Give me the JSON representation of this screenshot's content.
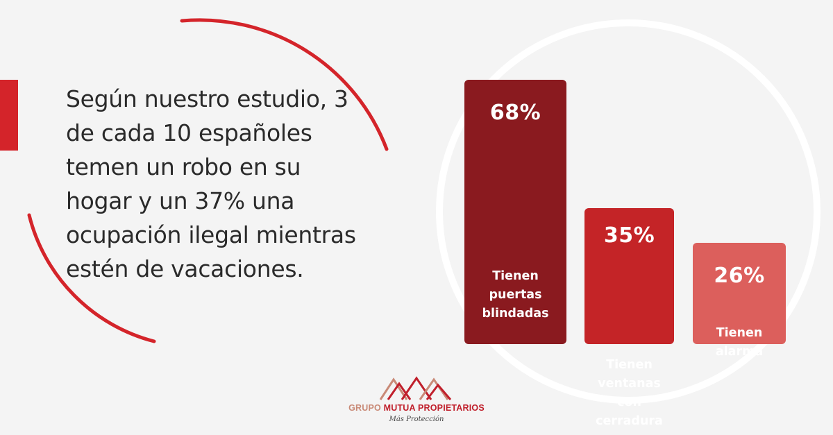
{
  "headline": "Según nuestro estudio, 3 de cada 10 españoles temen un robo en su hogar y un 37% una ocupación ilegal mientras estén de vacaciones.",
  "colors": {
    "background": "#f4f4f4",
    "accent_red": "#d4242a",
    "bar_dark": "#8a1a1f",
    "bar_mid": "#c42427",
    "bar_light": "#dc5f5c"
  },
  "chart_data": {
    "type": "bar",
    "categories": [
      "Tienen puertas blindadas",
      "Tienen ventanas con cerradura",
      "Tienen alarma"
    ],
    "values": [
      68,
      35,
      26
    ],
    "value_labels": [
      "68%",
      "35%",
      "26%"
    ],
    "label_lines": [
      [
        "Tienen",
        "puertas",
        "blindadas"
      ],
      [
        "Tienen",
        "ventanas con",
        "cerradura"
      ],
      [
        "Tienen",
        "alarma"
      ]
    ],
    "title": "",
    "xlabel": "",
    "ylabel": "",
    "grid": false
  },
  "logo": {
    "word1": "GRUPO",
    "word2": "MUTUA PROPIETARIOS",
    "tagline": "Más Protección",
    "icon": "twin-m-peaks-logo-icon"
  }
}
